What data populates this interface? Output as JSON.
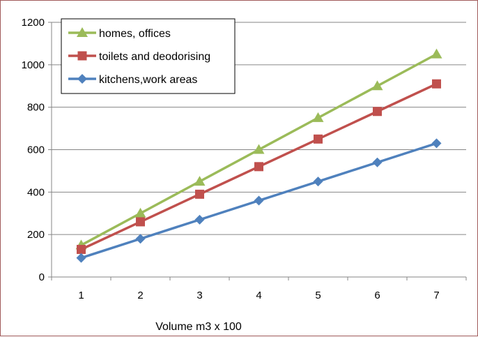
{
  "chart_data": {
    "type": "line",
    "title": "",
    "xlabel": "Volume m3 x 100",
    "ylabel": "",
    "x": [
      1,
      2,
      3,
      4,
      5,
      6,
      7
    ],
    "ylim": [
      0,
      1200
    ],
    "yticks": [
      0,
      200,
      400,
      600,
      800,
      1000,
      1200
    ],
    "grid": true,
    "legend_position": "top-left",
    "series": [
      {
        "name": "homes, offices",
        "color": "#9bbb59",
        "marker": "triangle",
        "values": [
          150,
          300,
          450,
          600,
          750,
          900,
          1050
        ]
      },
      {
        "name": "toilets and deodorising",
        "color": "#c0504d",
        "marker": "square",
        "values": [
          130,
          260,
          390,
          520,
          650,
          780,
          910
        ]
      },
      {
        "name": "kitchens,work areas",
        "color": "#4f81bd",
        "marker": "diamond",
        "values": [
          90,
          180,
          270,
          360,
          450,
          540,
          630
        ]
      }
    ]
  }
}
